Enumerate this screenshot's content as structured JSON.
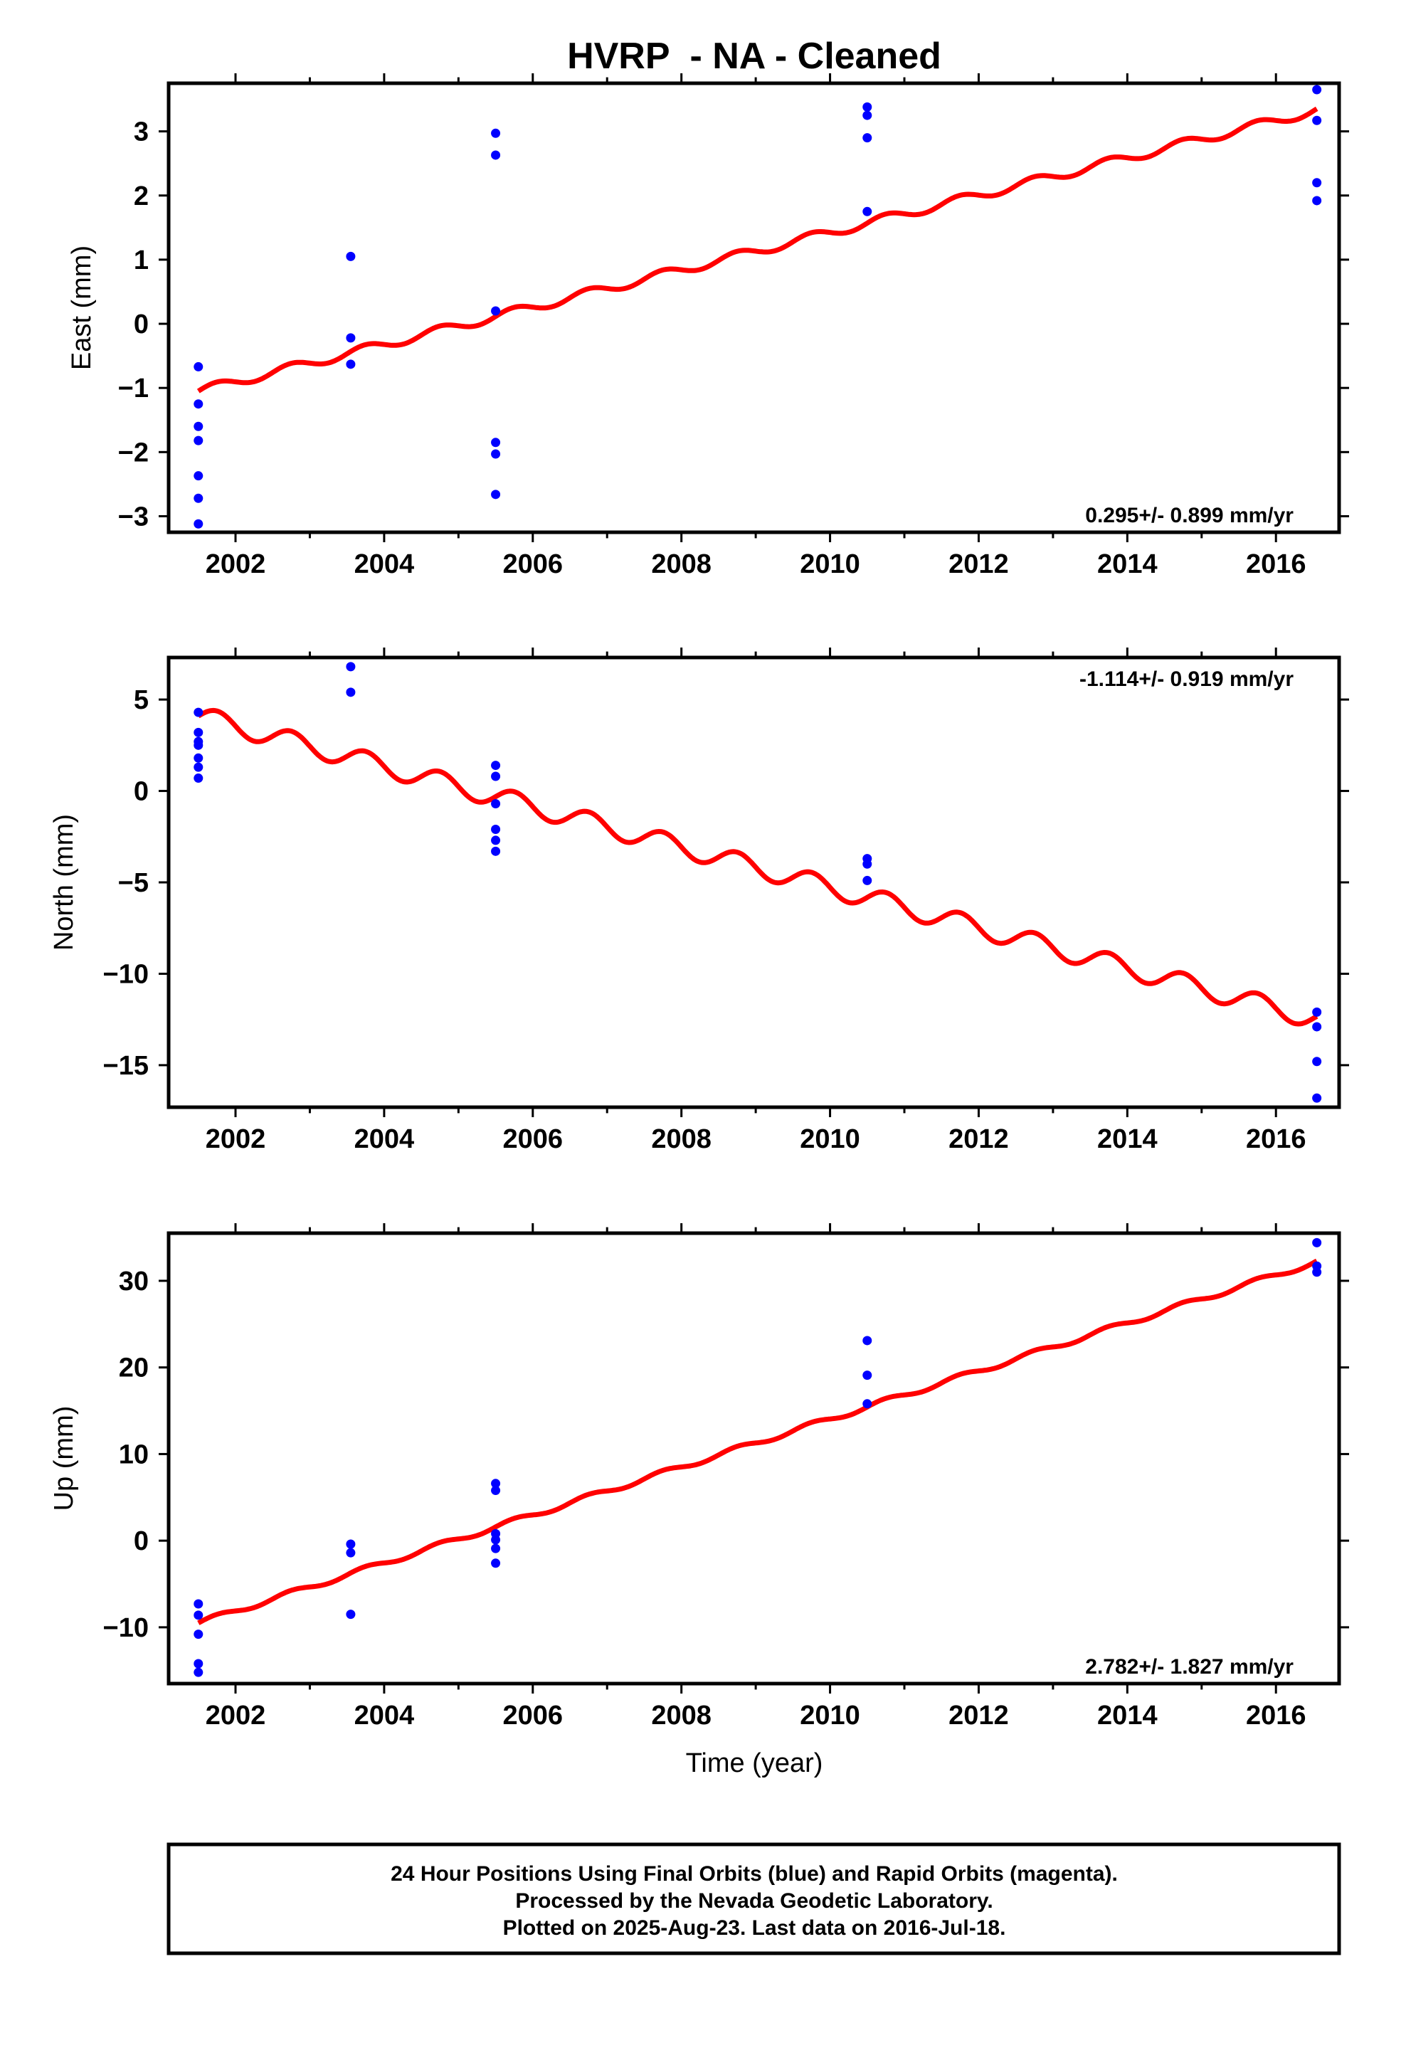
{
  "chart_data": {
    "title": "HVRP  - NA - Cleaned",
    "xlabel": "Time (year)",
    "xticks": [
      "2002",
      "2004",
      "2006",
      "2008",
      "2010",
      "2012",
      "2014",
      "2016"
    ],
    "panels": [
      {
        "type": "scatter",
        "ylabel": "East (mm)",
        "rate_label": "0.295+/- 0.899 mm/yr",
        "rate_position": "bottom-right",
        "xlim": [
          2001.1,
          2016.85
        ],
        "ylim": [
          -3.25,
          3.75
        ],
        "yticks": [
          "−3",
          "−2",
          "−1",
          "0",
          "1",
          "2",
          "3"
        ],
        "ytick_values": [
          -3,
          -2,
          -1,
          0,
          1,
          2,
          3
        ],
        "points": [
          [
            2001.5,
            -0.67
          ],
          [
            2001.5,
            -1.25
          ],
          [
            2001.5,
            -1.6
          ],
          [
            2001.5,
            -1.82
          ],
          [
            2001.5,
            -2.37
          ],
          [
            2001.5,
            -2.72
          ],
          [
            2001.5,
            -3.12
          ],
          [
            2003.55,
            1.05
          ],
          [
            2003.55,
            -0.22
          ],
          [
            2003.55,
            -0.63
          ],
          [
            2005.5,
            2.97
          ],
          [
            2005.5,
            2.63
          ],
          [
            2005.5,
            0.2
          ],
          [
            2005.5,
            -1.85
          ],
          [
            2005.5,
            -2.03
          ],
          [
            2005.5,
            -2.66
          ],
          [
            2010.5,
            3.38
          ],
          [
            2010.5,
            3.25
          ],
          [
            2010.5,
            2.9
          ],
          [
            2010.5,
            1.75
          ],
          [
            2016.55,
            3.65
          ],
          [
            2016.55,
            3.17
          ],
          [
            2016.55,
            2.2
          ],
          [
            2016.55,
            1.92
          ]
        ],
        "model": {
          "t0": 2001.5,
          "t1": 2016.55,
          "y0": -1.05,
          "y1": 3.33,
          "annual_amplitude": 0.07
        }
      },
      {
        "type": "scatter",
        "ylabel": "North (mm)",
        "rate_label": "-1.114+/- 0.919 mm/yr",
        "rate_position": "top-right",
        "xlim": [
          2001.1,
          2016.85
        ],
        "ylim": [
          -17.3,
          7.3
        ],
        "yticks": [
          "−15",
          "−10",
          "−5",
          "0",
          "5"
        ],
        "ytick_values": [
          -15,
          -10,
          -5,
          0,
          5
        ],
        "points": [
          [
            2001.5,
            4.3
          ],
          [
            2001.5,
            3.2
          ],
          [
            2001.5,
            2.7
          ],
          [
            2001.5,
            2.5
          ],
          [
            2001.5,
            1.8
          ],
          [
            2001.5,
            1.3
          ],
          [
            2001.5,
            0.7
          ],
          [
            2003.55,
            6.8
          ],
          [
            2003.55,
            5.4
          ],
          [
            2005.5,
            1.4
          ],
          [
            2005.5,
            0.8
          ],
          [
            2005.5,
            -0.7
          ],
          [
            2005.5,
            -2.1
          ],
          [
            2005.5,
            -2.7
          ],
          [
            2005.5,
            -3.3
          ],
          [
            2010.5,
            -3.7
          ],
          [
            2010.5,
            -4.0
          ],
          [
            2010.5,
            -4.9
          ],
          [
            2016.55,
            -12.1
          ],
          [
            2016.55,
            -12.9
          ],
          [
            2016.55,
            -14.8
          ],
          [
            2016.55,
            -16.8
          ]
        ],
        "model": {
          "t0": 2001.5,
          "t1": 2016.55,
          "y0": 4.1,
          "y1": -12.5,
          "annual_amplitude": 0.55
        }
      },
      {
        "type": "scatter",
        "ylabel": "Up (mm)",
        "rate_label": "2.782+/- 1.827 mm/yr",
        "rate_position": "bottom-right",
        "xlim": [
          2001.1,
          2016.85
        ],
        "ylim": [
          -16.5,
          35.5
        ],
        "yticks": [
          "−10",
          "0",
          "10",
          "20",
          "30"
        ],
        "ytick_values": [
          -10,
          0,
          10,
          20,
          30
        ],
        "points": [
          [
            2001.5,
            -7.3
          ],
          [
            2001.5,
            -8.6
          ],
          [
            2001.5,
            -10.8
          ],
          [
            2001.5,
            -14.2
          ],
          [
            2001.5,
            -15.2
          ],
          [
            2003.55,
            -0.4
          ],
          [
            2003.55,
            -1.4
          ],
          [
            2003.55,
            -8.5
          ],
          [
            2005.5,
            6.6
          ],
          [
            2005.5,
            5.8
          ],
          [
            2005.5,
            0.8
          ],
          [
            2005.5,
            0.1
          ],
          [
            2005.5,
            -0.9
          ],
          [
            2005.5,
            -2.6
          ],
          [
            2010.5,
            23.1
          ],
          [
            2010.5,
            19.1
          ],
          [
            2010.5,
            15.8
          ],
          [
            2016.55,
            34.4
          ],
          [
            2016.55,
            31.7
          ],
          [
            2016.55,
            31.0
          ]
        ],
        "model": {
          "t0": 2001.5,
          "t1": 2016.55,
          "y0": -9.5,
          "y1": 32.2,
          "annual_amplitude": 0.3
        }
      }
    ],
    "colors": {
      "points": "#0000ff",
      "model": "#ff0000",
      "frame": "#000000"
    },
    "grid": false
  },
  "footer": {
    "line1": "24 Hour Positions Using Final Orbits (blue) and Rapid Orbits (magenta).",
    "line2": "Processed by the Nevada Geodetic Laboratory.",
    "line3": "Plotted on 2025-Aug-23. Last data on 2016-Jul-18."
  }
}
